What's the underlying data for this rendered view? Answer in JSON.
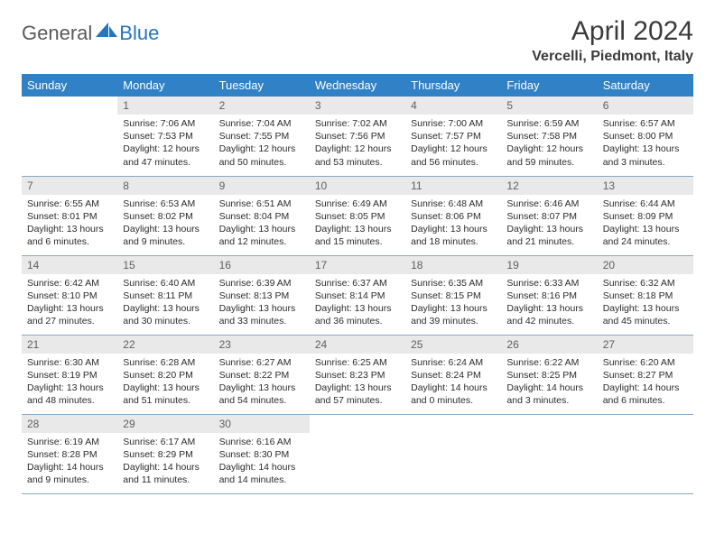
{
  "brand": {
    "part1": "General",
    "part2": "Blue",
    "logo_color": "#2676bb",
    "text_color": "#5a5a5a"
  },
  "title": "April 2024",
  "location": "Vercelli, Piedmont, Italy",
  "colors": {
    "header_bg": "#3081c5",
    "header_text": "#ffffff",
    "daynum_bg": "#e9e9e9",
    "daynum_text": "#5f5f5f",
    "cell_border": "#8aa8c4",
    "body_text": "#2b2b2b"
  },
  "weekdays": [
    "Sunday",
    "Monday",
    "Tuesday",
    "Wednesday",
    "Thursday",
    "Friday",
    "Saturday"
  ],
  "weeks": [
    [
      {
        "empty": true
      },
      {
        "day": "1",
        "sunrise": "Sunrise: 7:06 AM",
        "sunset": "Sunset: 7:53 PM",
        "daylight": "Daylight: 12 hours and 47 minutes."
      },
      {
        "day": "2",
        "sunrise": "Sunrise: 7:04 AM",
        "sunset": "Sunset: 7:55 PM",
        "daylight": "Daylight: 12 hours and 50 minutes."
      },
      {
        "day": "3",
        "sunrise": "Sunrise: 7:02 AM",
        "sunset": "Sunset: 7:56 PM",
        "daylight": "Daylight: 12 hours and 53 minutes."
      },
      {
        "day": "4",
        "sunrise": "Sunrise: 7:00 AM",
        "sunset": "Sunset: 7:57 PM",
        "daylight": "Daylight: 12 hours and 56 minutes."
      },
      {
        "day": "5",
        "sunrise": "Sunrise: 6:59 AM",
        "sunset": "Sunset: 7:58 PM",
        "daylight": "Daylight: 12 hours and 59 minutes."
      },
      {
        "day": "6",
        "sunrise": "Sunrise: 6:57 AM",
        "sunset": "Sunset: 8:00 PM",
        "daylight": "Daylight: 13 hours and 3 minutes."
      }
    ],
    [
      {
        "day": "7",
        "sunrise": "Sunrise: 6:55 AM",
        "sunset": "Sunset: 8:01 PM",
        "daylight": "Daylight: 13 hours and 6 minutes."
      },
      {
        "day": "8",
        "sunrise": "Sunrise: 6:53 AM",
        "sunset": "Sunset: 8:02 PM",
        "daylight": "Daylight: 13 hours and 9 minutes."
      },
      {
        "day": "9",
        "sunrise": "Sunrise: 6:51 AM",
        "sunset": "Sunset: 8:04 PM",
        "daylight": "Daylight: 13 hours and 12 minutes."
      },
      {
        "day": "10",
        "sunrise": "Sunrise: 6:49 AM",
        "sunset": "Sunset: 8:05 PM",
        "daylight": "Daylight: 13 hours and 15 minutes."
      },
      {
        "day": "11",
        "sunrise": "Sunrise: 6:48 AM",
        "sunset": "Sunset: 8:06 PM",
        "daylight": "Daylight: 13 hours and 18 minutes."
      },
      {
        "day": "12",
        "sunrise": "Sunrise: 6:46 AM",
        "sunset": "Sunset: 8:07 PM",
        "daylight": "Daylight: 13 hours and 21 minutes."
      },
      {
        "day": "13",
        "sunrise": "Sunrise: 6:44 AM",
        "sunset": "Sunset: 8:09 PM",
        "daylight": "Daylight: 13 hours and 24 minutes."
      }
    ],
    [
      {
        "day": "14",
        "sunrise": "Sunrise: 6:42 AM",
        "sunset": "Sunset: 8:10 PM",
        "daylight": "Daylight: 13 hours and 27 minutes."
      },
      {
        "day": "15",
        "sunrise": "Sunrise: 6:40 AM",
        "sunset": "Sunset: 8:11 PM",
        "daylight": "Daylight: 13 hours and 30 minutes."
      },
      {
        "day": "16",
        "sunrise": "Sunrise: 6:39 AM",
        "sunset": "Sunset: 8:13 PM",
        "daylight": "Daylight: 13 hours and 33 minutes."
      },
      {
        "day": "17",
        "sunrise": "Sunrise: 6:37 AM",
        "sunset": "Sunset: 8:14 PM",
        "daylight": "Daylight: 13 hours and 36 minutes."
      },
      {
        "day": "18",
        "sunrise": "Sunrise: 6:35 AM",
        "sunset": "Sunset: 8:15 PM",
        "daylight": "Daylight: 13 hours and 39 minutes."
      },
      {
        "day": "19",
        "sunrise": "Sunrise: 6:33 AM",
        "sunset": "Sunset: 8:16 PM",
        "daylight": "Daylight: 13 hours and 42 minutes."
      },
      {
        "day": "20",
        "sunrise": "Sunrise: 6:32 AM",
        "sunset": "Sunset: 8:18 PM",
        "daylight": "Daylight: 13 hours and 45 minutes."
      }
    ],
    [
      {
        "day": "21",
        "sunrise": "Sunrise: 6:30 AM",
        "sunset": "Sunset: 8:19 PM",
        "daylight": "Daylight: 13 hours and 48 minutes."
      },
      {
        "day": "22",
        "sunrise": "Sunrise: 6:28 AM",
        "sunset": "Sunset: 8:20 PM",
        "daylight": "Daylight: 13 hours and 51 minutes."
      },
      {
        "day": "23",
        "sunrise": "Sunrise: 6:27 AM",
        "sunset": "Sunset: 8:22 PM",
        "daylight": "Daylight: 13 hours and 54 minutes."
      },
      {
        "day": "24",
        "sunrise": "Sunrise: 6:25 AM",
        "sunset": "Sunset: 8:23 PM",
        "daylight": "Daylight: 13 hours and 57 minutes."
      },
      {
        "day": "25",
        "sunrise": "Sunrise: 6:24 AM",
        "sunset": "Sunset: 8:24 PM",
        "daylight": "Daylight: 14 hours and 0 minutes."
      },
      {
        "day": "26",
        "sunrise": "Sunrise: 6:22 AM",
        "sunset": "Sunset: 8:25 PM",
        "daylight": "Daylight: 14 hours and 3 minutes."
      },
      {
        "day": "27",
        "sunrise": "Sunrise: 6:20 AM",
        "sunset": "Sunset: 8:27 PM",
        "daylight": "Daylight: 14 hours and 6 minutes."
      }
    ],
    [
      {
        "day": "28",
        "sunrise": "Sunrise: 6:19 AM",
        "sunset": "Sunset: 8:28 PM",
        "daylight": "Daylight: 14 hours and 9 minutes."
      },
      {
        "day": "29",
        "sunrise": "Sunrise: 6:17 AM",
        "sunset": "Sunset: 8:29 PM",
        "daylight": "Daylight: 14 hours and 11 minutes."
      },
      {
        "day": "30",
        "sunrise": "Sunrise: 6:16 AM",
        "sunset": "Sunset: 8:30 PM",
        "daylight": "Daylight: 14 hours and 14 minutes."
      },
      {
        "empty": true
      },
      {
        "empty": true
      },
      {
        "empty": true
      },
      {
        "empty": true
      }
    ]
  ]
}
